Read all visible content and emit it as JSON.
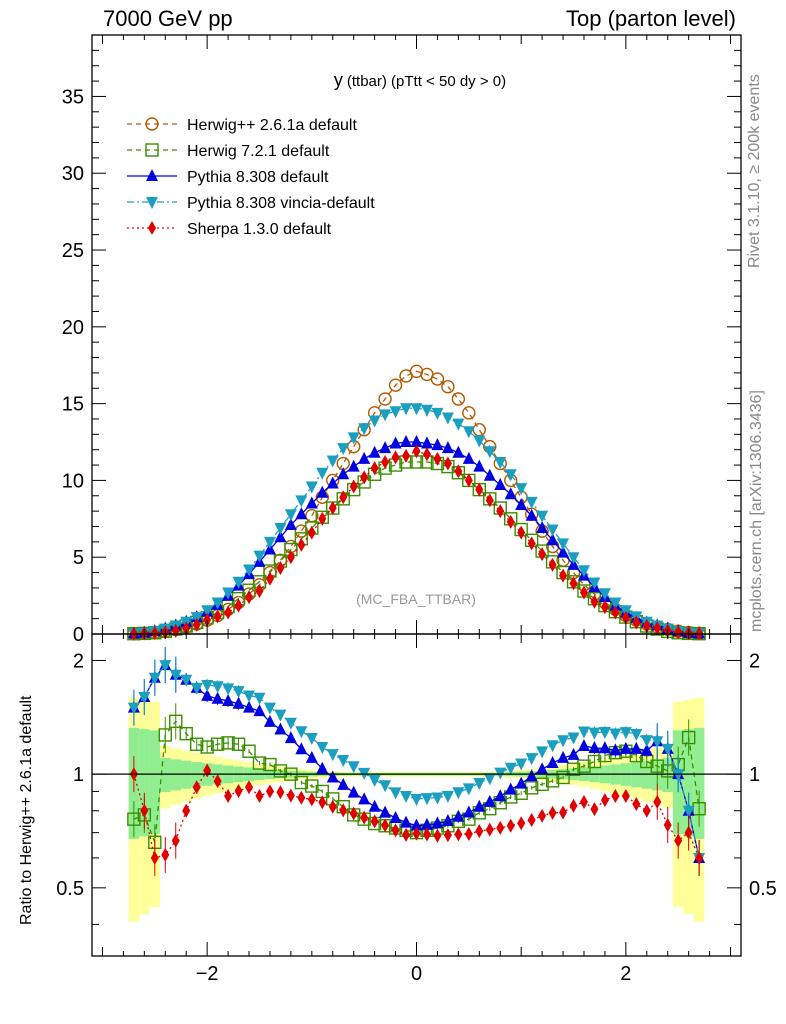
{
  "header": {
    "left": "7000 GeV pp",
    "right": "Top (parton level)"
  },
  "side": {
    "rivet": "Rivet 3.1.10, ≥ 200k events",
    "mcplots": "mcplots.cern.ch [arXiv:1306.3436]"
  },
  "chart_data": {
    "type": "line",
    "title": "y (ttbar) (pTtt < 50 dy > 0)",
    "title_main": "y",
    "title_sub": "(ttbar) (pTtt < 50 dy > 0)",
    "watermark": "(MC_FBA_TTBAR)",
    "xlim": [
      -3.1,
      3.1
    ],
    "ylim_main": [
      0,
      39
    ],
    "ylim_ratio": [
      0.33,
      2.35
    ],
    "xticks": [
      -2,
      0,
      2
    ],
    "xtick_labels": [
      "−2",
      "0",
      "2"
    ],
    "yticks_main": [
      0,
      5,
      10,
      15,
      20,
      25,
      30,
      35
    ],
    "yticks_main_labels": [
      "0",
      "5",
      "10",
      "15",
      "20",
      "25",
      "30",
      "35"
    ],
    "yticks_ratio": [
      0.5,
      1,
      2
    ],
    "yticks_ratio_labels": [
      "0.5",
      "1",
      "2"
    ],
    "ratio_ylabel": "Ratio to Herwig++ 2.6.1a default",
    "x": [
      -2.7,
      -2.6,
      -2.5,
      -2.4,
      -2.3,
      -2.2,
      -2.1,
      -2.0,
      -1.9,
      -1.8,
      -1.7,
      -1.6,
      -1.5,
      -1.4,
      -1.3,
      -1.2,
      -1.1,
      -1.0,
      -0.9,
      -0.8,
      -0.7,
      -0.6,
      -0.5,
      -0.4,
      -0.3,
      -0.2,
      -0.1,
      0.0,
      0.1,
      0.2,
      0.3,
      0.4,
      0.5,
      0.6,
      0.7,
      0.8,
      0.9,
      1.0,
      1.1,
      1.2,
      1.3,
      1.4,
      1.5,
      1.6,
      1.7,
      1.8,
      1.9,
      2.0,
      2.1,
      2.2,
      2.3,
      2.4,
      2.5,
      2.6,
      2.7
    ],
    "series": [
      {
        "name": "Herwig++ 2.6.1a default",
        "color": "#b35900",
        "marker": "circle",
        "dash": "5,4",
        "values": [
          0.02,
          0.05,
          0.1,
          0.18,
          0.3,
          0.45,
          0.65,
          0.9,
          1.2,
          1.6,
          2.05,
          2.6,
          3.2,
          4.0,
          4.8,
          5.7,
          6.7,
          7.7,
          8.9,
          10.0,
          11.1,
          12.2,
          13.3,
          14.4,
          15.3,
          16.2,
          16.8,
          17.1,
          16.9,
          16.6,
          16.1,
          15.3,
          14.4,
          13.3,
          12.2,
          11.1,
          10.0,
          8.9,
          7.8,
          6.7,
          5.7,
          4.8,
          4.0,
          3.2,
          2.6,
          2.05,
          1.6,
          1.2,
          0.9,
          0.65,
          0.45,
          0.3,
          0.18,
          0.1,
          0.05
        ]
      },
      {
        "name": "Herwig 7.2.1 default",
        "color": "#3a8f00",
        "marker": "square",
        "dash": "5,4",
        "values": [
          0.02,
          0.04,
          0.08,
          0.17,
          0.32,
          0.52,
          0.75,
          1.05,
          1.4,
          1.8,
          2.3,
          2.85,
          3.4,
          4.1,
          4.75,
          5.5,
          6.2,
          6.9,
          7.6,
          8.2,
          8.8,
          9.4,
          9.9,
          10.4,
          10.8,
          11.0,
          11.2,
          11.2,
          11.2,
          11.1,
          10.9,
          10.5,
          10.0,
          9.4,
          8.8,
          8.2,
          7.5,
          6.8,
          6.1,
          5.4,
          4.7,
          4.0,
          3.4,
          2.8,
          2.3,
          1.85,
          1.45,
          1.1,
          0.8,
          0.52,
          0.32,
          0.17,
          0.08,
          0.04,
          0.02
        ]
      },
      {
        "name": "Pythia 8.308 default",
        "color": "#0000e0",
        "marker": "triangle-up",
        "dash": "",
        "values": [
          0.03,
          0.08,
          0.18,
          0.35,
          0.55,
          0.8,
          1.1,
          1.45,
          1.9,
          2.5,
          3.15,
          3.9,
          4.7,
          5.5,
          6.3,
          7.1,
          7.8,
          8.5,
          9.2,
          9.8,
          10.4,
          10.9,
          11.4,
          11.8,
          12.1,
          12.4,
          12.5,
          12.5,
          12.4,
          12.3,
          12.1,
          11.8,
          11.4,
          10.9,
          10.3,
          9.7,
          9.1,
          8.4,
          7.7,
          6.9,
          6.1,
          5.3,
          4.5,
          3.8,
          3.05,
          2.4,
          1.85,
          1.4,
          1.05,
          0.75,
          0.55,
          0.35,
          0.18,
          0.08,
          0.03
        ]
      },
      {
        "name": "Pythia 8.308 vincia-default",
        "color": "#1a9fc0",
        "marker": "triangle-down",
        "dash": "7,3,2,3",
        "values": [
          0.03,
          0.08,
          0.18,
          0.35,
          0.55,
          0.8,
          1.1,
          1.55,
          2.05,
          2.7,
          3.4,
          4.2,
          5.1,
          6.0,
          6.9,
          7.8,
          8.7,
          9.6,
          10.5,
          11.3,
          12.1,
          12.8,
          13.4,
          13.9,
          14.3,
          14.5,
          14.7,
          14.7,
          14.6,
          14.4,
          14.1,
          13.7,
          13.2,
          12.6,
          11.9,
          11.2,
          10.4,
          9.5,
          8.6,
          7.7,
          6.8,
          5.9,
          5.0,
          4.15,
          3.35,
          2.65,
          2.05,
          1.55,
          1.15,
          0.8,
          0.55,
          0.35,
          0.18,
          0.08,
          0.03
        ]
      },
      {
        "name": "Sherpa 1.3.0 default",
        "color": "#e00000",
        "marker": "diamond",
        "dash": "2,3",
        "values": [
          0.02,
          0.04,
          0.06,
          0.11,
          0.2,
          0.36,
          0.6,
          0.92,
          1.15,
          1.4,
          1.85,
          2.4,
          2.8,
          3.6,
          4.3,
          5.0,
          5.8,
          6.6,
          7.5,
          8.2,
          8.9,
          9.6,
          10.2,
          10.8,
          11.2,
          11.5,
          11.6,
          11.9,
          11.7,
          11.4,
          11.1,
          10.6,
          10.0,
          9.4,
          8.7,
          8.0,
          7.3,
          6.6,
          5.9,
          5.2,
          4.5,
          3.8,
          3.3,
          2.7,
          2.1,
          1.75,
          1.4,
          1.05,
          0.75,
          0.52,
          0.38,
          0.22,
          0.12,
          0.07,
          0.03
        ]
      }
    ],
    "ratio": {
      "reference": "Herwig++ 2.6.1a default",
      "band_inner_color": "#90ee90",
      "band_outer_color": "#ffff99",
      "series_values": {
        "Herwig 7.2.1 default": [
          0.76,
          0.78,
          0.66,
          1.27,
          1.38,
          1.28,
          1.2,
          1.18,
          1.2,
          1.21,
          1.2,
          1.15,
          1.07,
          1.06,
          1.02,
          1.0,
          0.95,
          0.93,
          0.9,
          0.86,
          0.82,
          0.78,
          0.76,
          0.74,
          0.73,
          0.72,
          0.71,
          0.7,
          0.71,
          0.72,
          0.73,
          0.75,
          0.76,
          0.79,
          0.81,
          0.84,
          0.87,
          0.89,
          0.92,
          0.94,
          0.96,
          0.98,
          1.03,
          1.05,
          1.08,
          1.12,
          1.14,
          1.15,
          1.12,
          1.08,
          1.05,
          1.02,
          1.06,
          1.25,
          0.81
        ]
      },
      "computed_from_main": true
    }
  }
}
